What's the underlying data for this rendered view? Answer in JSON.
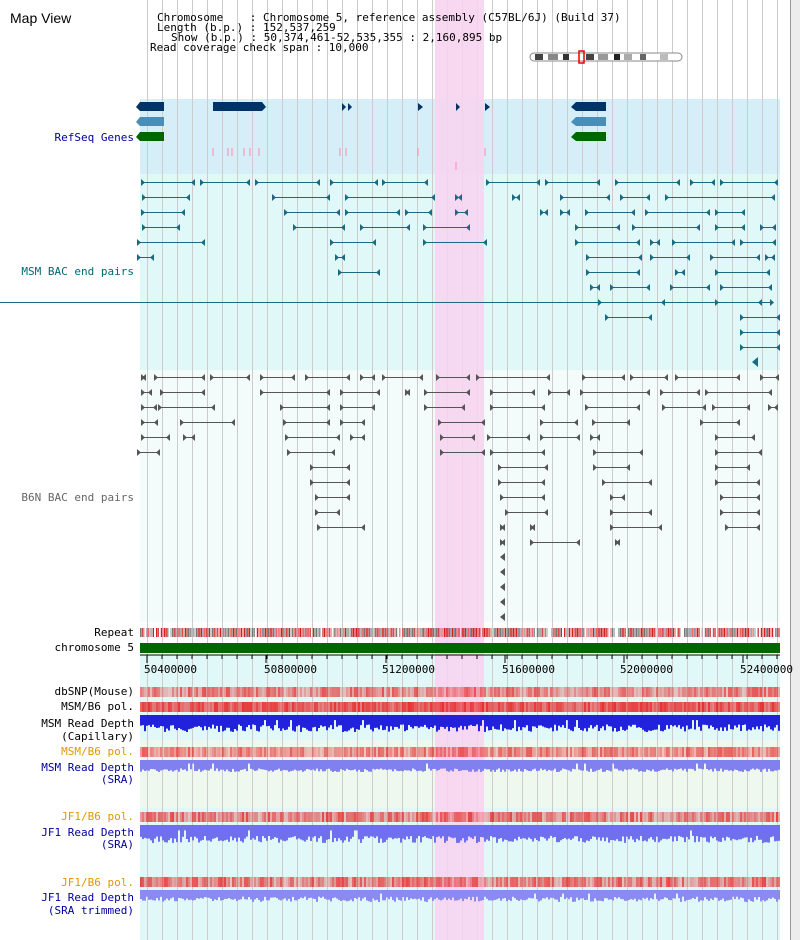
{
  "title": "Map View",
  "header": {
    "line1": "Chromosome    : Chromosome 5, reference assembly (C57BL/6J) (Build 37)",
    "line2": "Length (b.p.) : 152,537,259",
    "line3": "Show (b.p.) : 50,374,461-52,535,355 : 2,160,895 bp",
    "line4": "Read coverage check span : 10,000"
  },
  "tracks": {
    "refseq": "RefSeq Genes",
    "msm_bac": "MSM BAC end pairs",
    "b6n_bac": "B6N BAC end pairs",
    "repeat": "Repeat",
    "chromosome": "chromosome 5",
    "dbsnp": "dbSNP(Mouse)",
    "msm_pol": "MSM/B6 pol.",
    "msm_depth_cap_1": "MSM Read Depth",
    "msm_depth_cap_2": "(Capillary)",
    "msm_pol_sra": "MSM/B6 pol.",
    "msm_depth_sra_1": "MSM Read Depth",
    "msm_depth_sra_2": "(SRA)",
    "jf1_pol": "JF1/B6 pol.",
    "jf1_depth_1": "JF1 Read Depth",
    "jf1_depth_2": "(SRA)",
    "jf1_pol_trim": "JF1/B6 pol.",
    "jf1_depth_trim_1": "JF1 Read Depth",
    "jf1_depth_trim_2": "(SRA trimmed)"
  },
  "axis": {
    "ticks": [
      "50400000",
      "50800000",
      "51200000",
      "51600000",
      "52000000",
      "52400000"
    ]
  },
  "colors": {
    "label_blue": "#000099",
    "label_teal": "#006677",
    "label_gray": "#666666",
    "label_orange": "#dd9900",
    "highlight": "#f7d4ef",
    "chromosome": "#006600"
  }
}
